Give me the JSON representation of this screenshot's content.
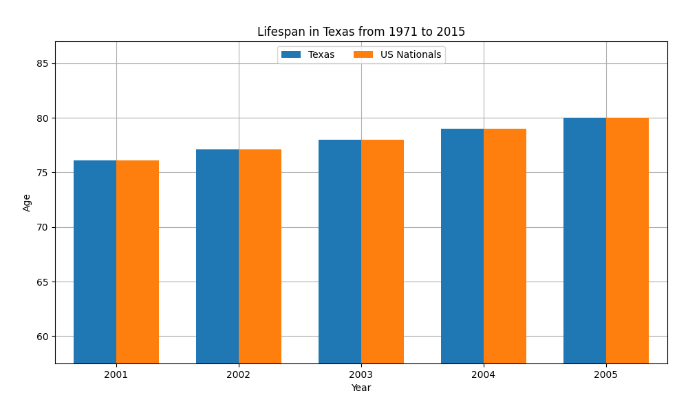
{
  "chart_data": {
    "type": "bar",
    "title": "Lifespan in Texas from 1971 to 2015",
    "xlabel": "Year",
    "ylabel": "Age",
    "categories": [
      2001,
      2002,
      2003,
      2004,
      2005
    ],
    "series": [
      {
        "name": "Texas",
        "values": [
          76.1,
          77.1,
          78.0,
          79.0,
          80.0
        ]
      },
      {
        "name": "US Nationals",
        "values": [
          76.1,
          77.1,
          78.0,
          79.0,
          80.0
        ]
      }
    ],
    "ylim": [
      57.5,
      87
    ],
    "yticks": [
      60,
      65,
      70,
      75,
      80,
      85
    ],
    "grid": true,
    "legend": "upper center"
  }
}
